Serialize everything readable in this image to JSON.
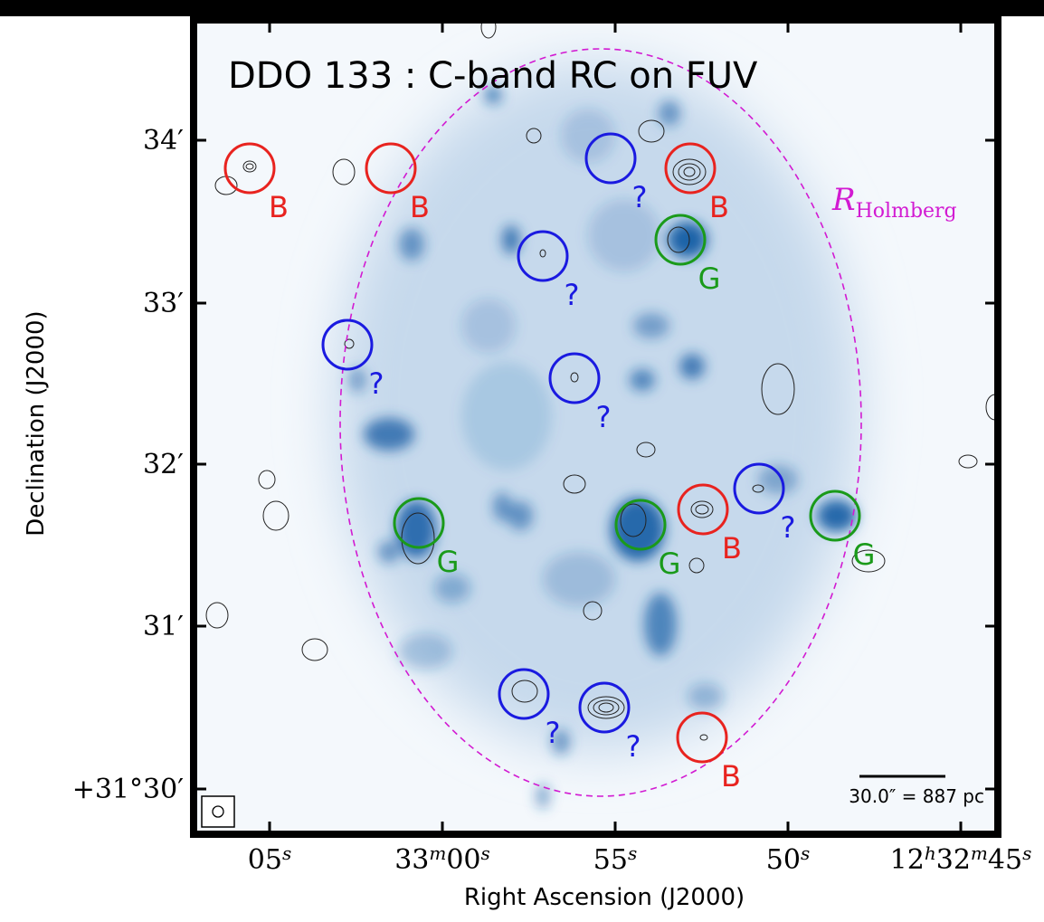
{
  "title": "DDO 133 : C-band RC on FUV",
  "x_axis": {
    "label": "Right Ascension (J2000)",
    "ticks": [
      [
        [
          "05",
          "s"
        ]
      ],
      [
        [
          "33",
          "m"
        ],
        [
          "00",
          "s"
        ]
      ],
      [
        [
          "55",
          "s"
        ]
      ],
      [
        [
          "50",
          "s"
        ]
      ],
      [
        [
          "12",
          "h"
        ],
        [
          "32",
          "m"
        ],
        [
          "45",
          "s"
        ]
      ]
    ]
  },
  "y_axis": {
    "label": "Declination (J2000)",
    "ticks": [
      "34′",
      "33′",
      "32′",
      "31′",
      "+31°30′"
    ]
  },
  "ellipse_label": {
    "base": "R",
    "sub": "Holmberg"
  },
  "scale_bar": "30.0″ = 887 pc",
  "markers": [
    {
      "label": "B",
      "color": "#e8231f"
    },
    {
      "label": "B",
      "color": "#e8231f"
    },
    {
      "label": "?",
      "color": "#1a1ae0"
    },
    {
      "label": "B",
      "color": "#e8231f"
    },
    {
      "label": "G",
      "color": "#1a9a1a"
    },
    {
      "label": "?",
      "color": "#1a1ae0"
    },
    {
      "label": "?",
      "color": "#1a1ae0"
    },
    {
      "label": "?",
      "color": "#1a1ae0"
    },
    {
      "label": "G",
      "color": "#1a9a1a"
    },
    {
      "label": "G",
      "color": "#1a9a1a"
    },
    {
      "label": "B",
      "color": "#e8231f"
    },
    {
      "label": "?",
      "color": "#1a1ae0"
    },
    {
      "label": "G",
      "color": "#1a9a1a"
    },
    {
      "label": "?",
      "color": "#1a1ae0"
    },
    {
      "label": "?",
      "color": "#1a1ae0"
    },
    {
      "label": "B",
      "color": "#e8231f"
    }
  ]
}
